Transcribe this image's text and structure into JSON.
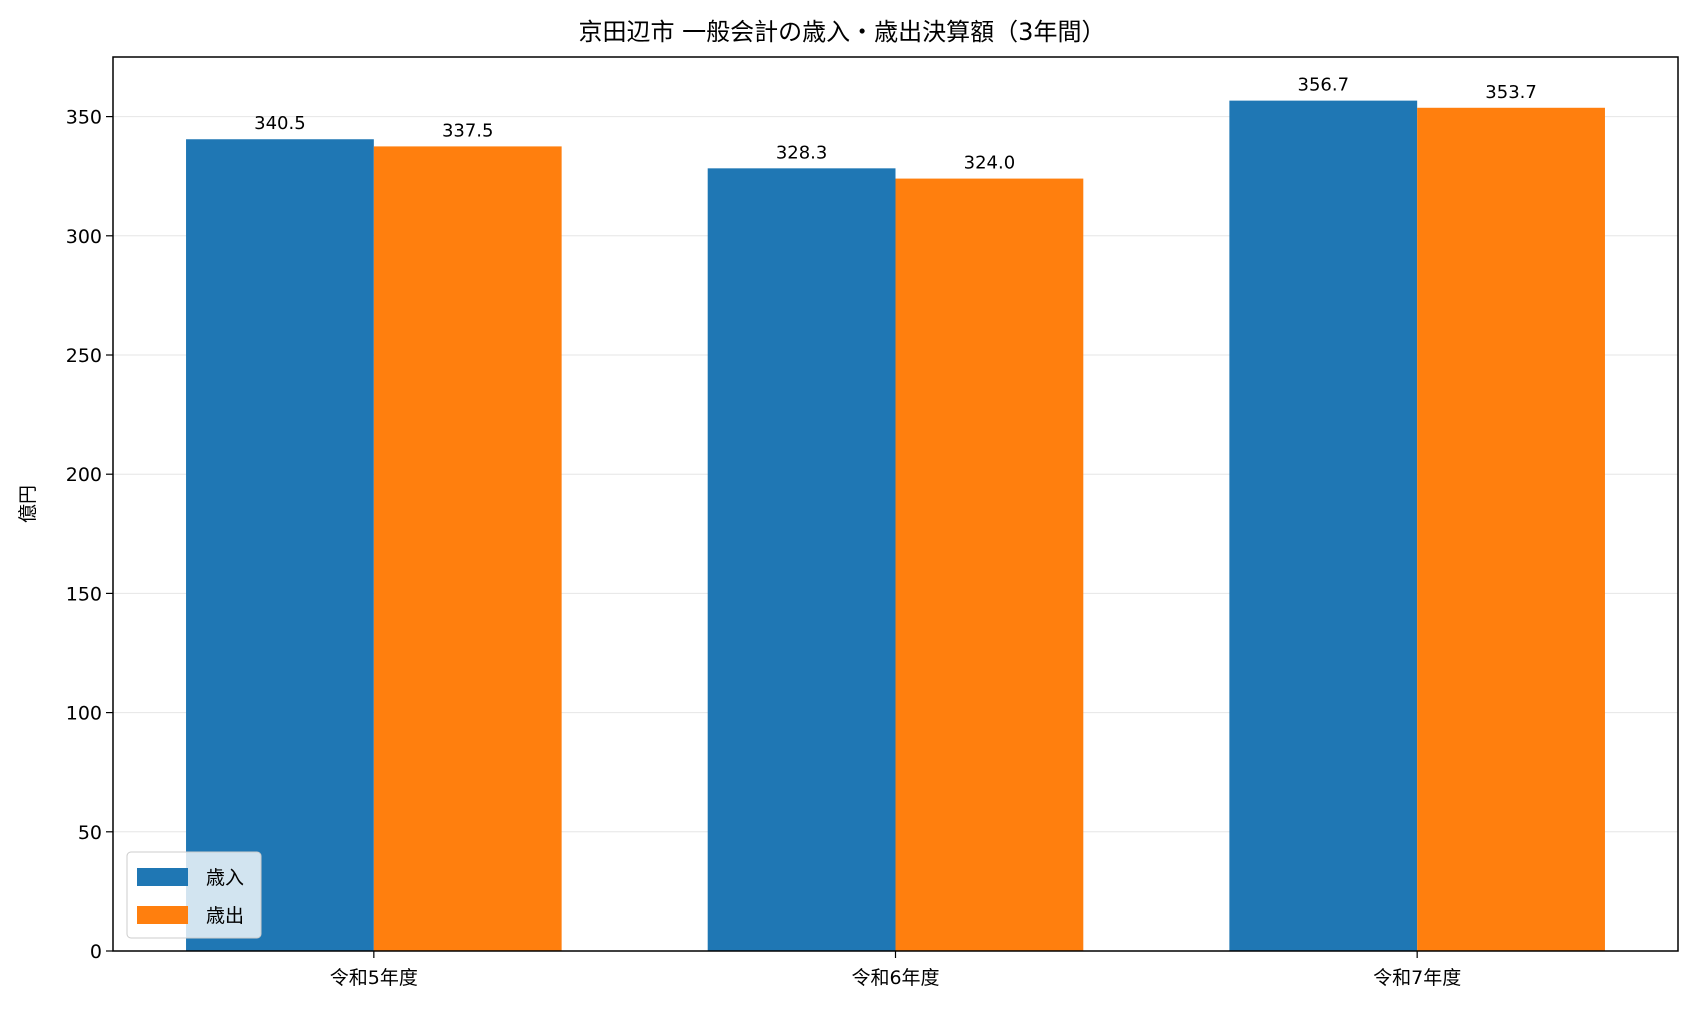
{
  "chart_data": {
    "type": "bar",
    "title": "京田辺市 一般会計の歳入・歳出決算額（3年間）",
    "xlabel": "",
    "ylabel": "億円",
    "categories": [
      "令和5年度",
      "令和6年度",
      "令和7年度"
    ],
    "series": [
      {
        "name": "歳入",
        "values": [
          340.5,
          328.3,
          356.7
        ],
        "color": "#1f77b4"
      },
      {
        "name": "歳出",
        "values": [
          337.5,
          324.0,
          353.7
        ],
        "color": "#ff7f0e"
      }
    ],
    "data_labels": [
      [
        "340.5",
        "328.3",
        "356.7"
      ],
      [
        "337.5",
        "324.0",
        "353.7"
      ]
    ],
    "yticks": [
      0,
      50,
      100,
      150,
      200,
      250,
      300,
      350
    ],
    "ylim": [
      0,
      375
    ],
    "grid": "horizontal",
    "legend": "lower-left"
  }
}
